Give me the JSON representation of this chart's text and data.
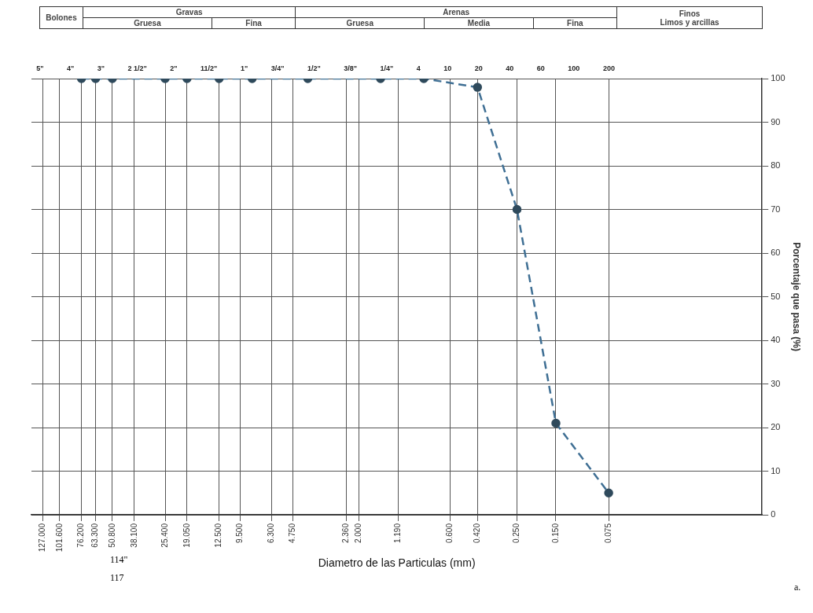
{
  "chart_data": {
    "type": "line",
    "xlabel": "Diametro de las Particulas (mm)",
    "ylabel": "Porcentaje que pasa (%)",
    "annotations": [
      "Bolones",
      "Gravas",
      "Arenas",
      "Finos",
      "Gruesa",
      "Fina",
      "Gruesa",
      "Media",
      "Fina",
      "Limos y arcillas",
      "5\"",
      "4\"",
      "3\"",
      "2 1/2\"",
      "2\"",
      "11/2\"",
      "1\"",
      "3/4\"",
      "1/2\"",
      "3/8\"",
      "1/4\"",
      "4",
      "10",
      "20",
      "40",
      "60",
      "100",
      "200",
      "114\"",
      "117",
      "a."
    ],
    "x": [
      76.2,
      63.3,
      50.8,
      25.4,
      19.05,
      12.5,
      8.1,
      3.9,
      1.5,
      0.85,
      0.42,
      0.25,
      0.15,
      0.075
    ],
    "series": [
      {
        "color": "#3f6f94",
        "values": [
          100,
          100,
          100,
          100,
          100,
          100,
          100,
          100,
          100,
          100,
          98,
          70,
          21,
          5
        ]
      }
    ],
    "xlim": [
      147,
      0.01
    ],
    "xticks": [
      {
        "value": 127,
        "label": "127.000"
      },
      {
        "value": 101.6,
        "label": "101.600"
      },
      {
        "value": 76.2,
        "label": "76.200"
      },
      {
        "value": 63.3,
        "label": "63.300"
      },
      {
        "value": 50.8,
        "label": "50.800"
      },
      {
        "value": 38.1,
        "label": "38.100"
      },
      {
        "value": 25.4,
        "label": "25.400"
      },
      {
        "value": 19.05,
        "label": "19.050"
      },
      {
        "value": 12.5,
        "label": "12.500"
      },
      {
        "value": 9.5,
        "label": "9.500"
      },
      {
        "value": 6.3,
        "label": "6.300"
      },
      {
        "value": 4.75,
        "label": "4.750"
      },
      {
        "value": 2.36,
        "label": "2.360"
      },
      {
        "value": 2.0,
        "label": "2.000"
      },
      {
        "value": 1.19,
        "label": "1.190"
      },
      {
        "value": 0.6,
        "label": "0.600"
      },
      {
        "value": 0.42,
        "label": "0.420"
      },
      {
        "value": 0.25,
        "label": "0.250"
      },
      {
        "value": 0.15,
        "label": "0.150"
      },
      {
        "value": 0.075,
        "label": "0.075"
      }
    ],
    "ylim": [
      0,
      100
    ],
    "yticks": [
      0,
      10,
      20,
      30,
      40,
      50,
      60,
      70,
      80,
      90,
      100
    ],
    "log": "x",
    "grid": true,
    "legend": false,
    "marker": "circle",
    "line_style": "dashed"
  }
}
